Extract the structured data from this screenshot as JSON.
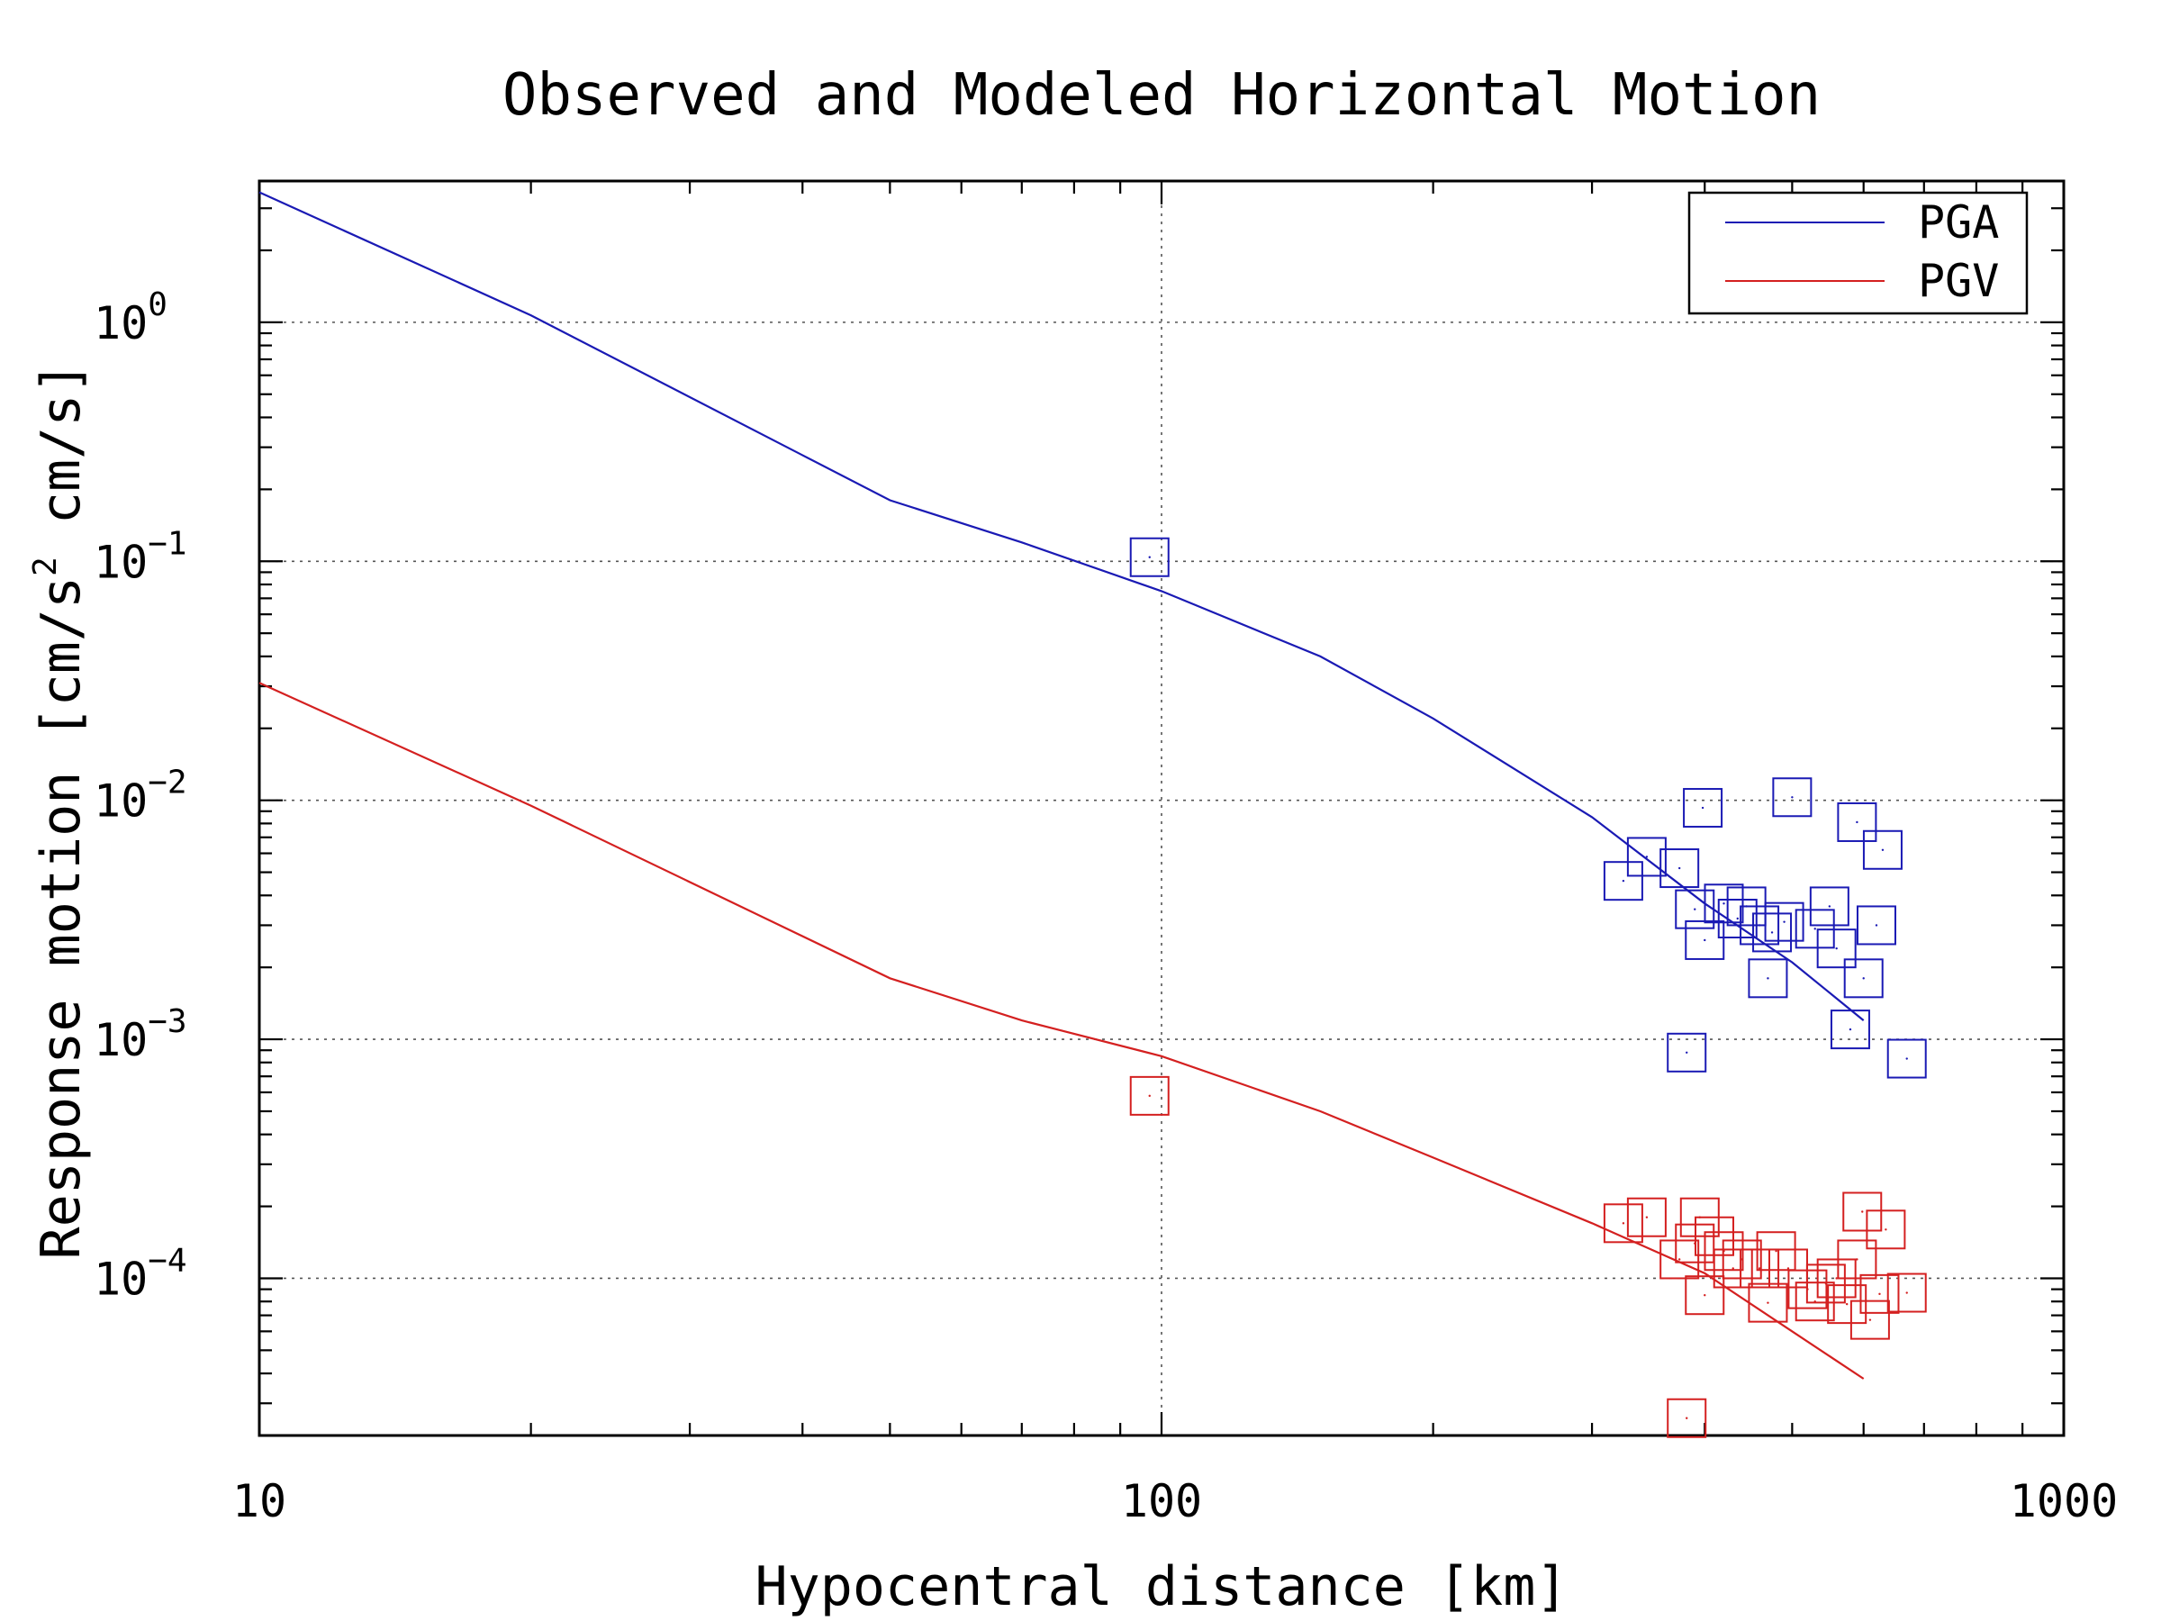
{
  "chart_data": {
    "type": "scatter",
    "title": "Observed and Modeled Horizontal Motion",
    "xlabel": "Hypocentral distance [km]",
    "ylabel_parts": [
      "Response motion [cm/s",
      "2",
      " cm/s]"
    ],
    "xscale": "log",
    "yscale": "log",
    "xlim": [
      10,
      1000
    ],
    "ylim": [
      2.2e-05,
      3.9
    ],
    "grid": true,
    "legend_position": "top-right",
    "x_ticks": [
      {
        "value": 10,
        "label": "10"
      },
      {
        "value": 100,
        "label": "100"
      },
      {
        "value": 1000,
        "label": "1000"
      }
    ],
    "y_ticks": [
      {
        "value": 1,
        "base": "10",
        "exp": "0"
      },
      {
        "value": 0.1,
        "base": "10",
        "exp": "−1"
      },
      {
        "value": 0.01,
        "base": "10",
        "exp": "−2"
      },
      {
        "value": 0.001,
        "base": "10",
        "exp": "−3"
      },
      {
        "value": 0.0001,
        "base": "10",
        "exp": "−4"
      }
    ],
    "series": [
      {
        "name": "PGA",
        "color": "#1a1ab4",
        "line": [
          [
            10,
            3.5
          ],
          [
            20,
            1.07
          ],
          [
            50,
            0.18
          ],
          [
            70,
            0.12
          ],
          [
            100,
            0.075
          ],
          [
            150,
            0.04
          ],
          [
            200,
            0.022
          ],
          [
            300,
            0.0085
          ],
          [
            400,
            0.0037
          ],
          [
            500,
            0.0021
          ],
          [
            600,
            0.0012
          ]
        ],
        "points": [
          [
            97,
            0.104
          ],
          [
            325,
            0.0046
          ],
          [
            345,
            0.0058
          ],
          [
            375,
            0.0052
          ],
          [
            390,
            0.0035
          ],
          [
            398,
            0.0093
          ],
          [
            400,
            0.0026
          ],
          [
            420,
            0.0037
          ],
          [
            435,
            0.0032
          ],
          [
            445,
            0.0036
          ],
          [
            460,
            0.003
          ],
          [
            470,
            0.0018
          ],
          [
            475,
            0.0028
          ],
          [
            490,
            0.0031
          ],
          [
            500,
            0.0103
          ],
          [
            530,
            0.0029
          ],
          [
            550,
            0.0036
          ],
          [
            560,
            0.0024
          ],
          [
            580,
            0.0011
          ],
          [
            590,
            0.0081
          ],
          [
            600,
            0.0018
          ],
          [
            620,
            0.003
          ],
          [
            630,
            0.0062
          ],
          [
            670,
            0.00083
          ],
          [
            382,
            0.00088
          ]
        ]
      },
      {
        "name": "PGV",
        "color": "#d42020",
        "line": [
          [
            10,
            0.031
          ],
          [
            20,
            0.0095
          ],
          [
            50,
            0.0018
          ],
          [
            70,
            0.0012
          ],
          [
            100,
            0.00085
          ],
          [
            150,
            0.0005
          ],
          [
            200,
            0.00032
          ],
          [
            300,
            0.00017
          ],
          [
            400,
            0.000105
          ],
          [
            500,
            6e-05
          ],
          [
            600,
            3.8e-05
          ]
        ],
        "points": [
          [
            97,
            0.00058
          ],
          [
            325,
            0.00017
          ],
          [
            345,
            0.00018
          ],
          [
            375,
            0.00012
          ],
          [
            390,
            0.00014
          ],
          [
            395,
            0.00018
          ],
          [
            400,
            8.5e-05
          ],
          [
            410,
            0.00015
          ],
          [
            420,
            0.00013
          ],
          [
            430,
            0.00011
          ],
          [
            440,
            0.00012
          ],
          [
            460,
            0.00011
          ],
          [
            470,
            7.9e-05
          ],
          [
            480,
            0.00013
          ],
          [
            495,
            0.00011
          ],
          [
            520,
            9e-05
          ],
          [
            530,
            8e-05
          ],
          [
            545,
            9.5e-05
          ],
          [
            560,
            0.0001
          ],
          [
            575,
            7.8e-05
          ],
          [
            590,
            0.00012
          ],
          [
            598,
            0.00019
          ],
          [
            610,
            6.7e-05
          ],
          [
            625,
            8.6e-05
          ],
          [
            635,
            0.00016
          ],
          [
            670,
            8.7e-05
          ],
          [
            382,
            2.6e-05
          ]
        ]
      }
    ]
  }
}
